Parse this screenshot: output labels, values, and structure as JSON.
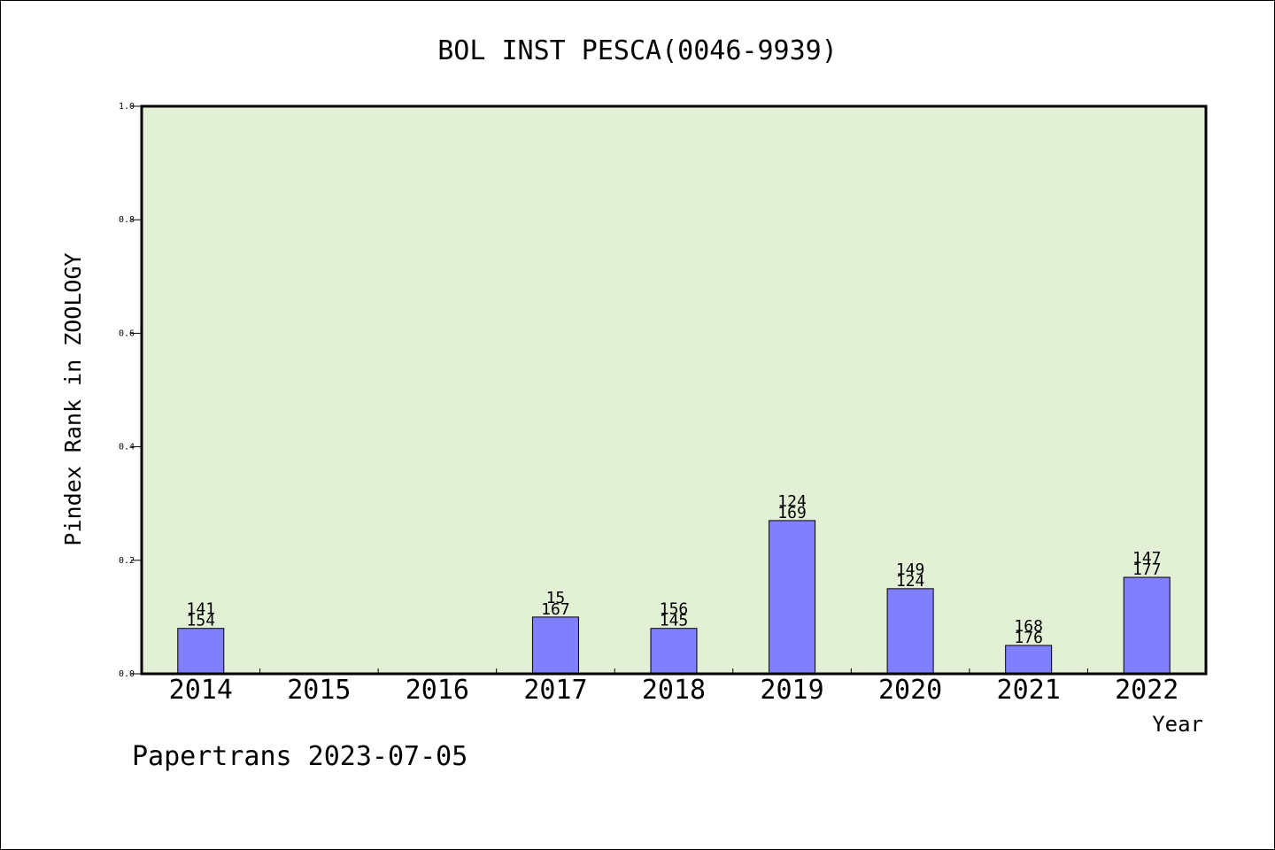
{
  "chart_data": {
    "type": "bar",
    "title": "BOL INST PESCA(0046-9939)",
    "ylabel": "Pindex Rank in ZOOLOGY",
    "xlabel": "Year",
    "footer": "Papertrans 2023-07-05",
    "ylim": [
      0,
      1.0
    ],
    "yticks": [
      "0.0",
      "0.2",
      "0.4",
      "0.6",
      "0.8",
      "1.0"
    ],
    "categories": [
      "2014",
      "2015",
      "2016",
      "2017",
      "2018",
      "2019",
      "2020",
      "2021",
      "2022"
    ],
    "values": [
      0.08,
      null,
      null,
      0.1,
      0.08,
      0.27,
      0.15,
      0.05,
      0.17
    ],
    "label_top": [
      "141",
      "",
      "",
      "15",
      "156",
      "124",
      "149",
      "168",
      "147"
    ],
    "label_bottom": [
      "154",
      "",
      "",
      "167",
      "145",
      "169",
      "124",
      "176",
      "177"
    ],
    "grid": false,
    "colors": {
      "plot_bg": "#e2f0d6",
      "bar_fill": "#8080ff",
      "bar_stroke": "#000000"
    }
  }
}
